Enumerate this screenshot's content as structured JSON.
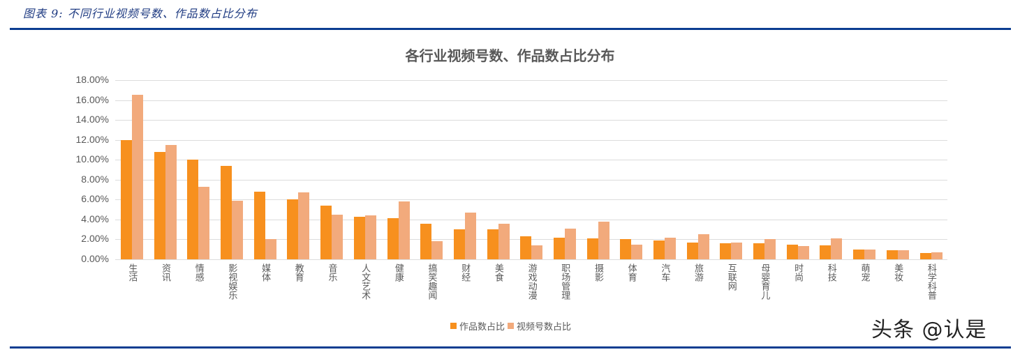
{
  "caption": "图表 9:  不同行业视频号数、作品数占比分布",
  "watermark": "头条 @认是",
  "chart_data": {
    "type": "bar",
    "title": "各行业视频号数、作品数占比分布",
    "xlabel": "",
    "ylabel": "",
    "ylim": [
      0,
      18
    ],
    "yticks": [
      "0.00%",
      "2.00%",
      "4.00%",
      "6.00%",
      "8.00%",
      "10.00%",
      "12.00%",
      "14.00%",
      "16.00%",
      "18.00%"
    ],
    "grid": true,
    "legend_position": "bottom",
    "categories": [
      "生活",
      "资讯",
      "情感",
      "影视娱乐",
      "媒体",
      "教育",
      "音乐",
      "人文艺术",
      "健康",
      "搞笑趣闻",
      "财经",
      "美食",
      "游戏动漫",
      "职场管理",
      "摄影",
      "体育",
      "汽车",
      "旅游",
      "互联网",
      "母婴育儿",
      "时尚",
      "科技",
      "萌宠",
      "美妆",
      "科学科普"
    ],
    "series": [
      {
        "name": "作品数占比",
        "color": "#f7901e",
        "values": [
          12.0,
          10.8,
          10.0,
          9.4,
          6.8,
          6.0,
          5.4,
          4.3,
          4.1,
          3.6,
          3.0,
          3.0,
          2.3,
          2.2,
          2.1,
          2.0,
          1.9,
          1.7,
          1.6,
          1.6,
          1.5,
          1.4,
          1.0,
          0.9,
          0.6
        ]
      },
      {
        "name": "视频号数占比",
        "color": "#f2aa7c",
        "values": [
          16.5,
          11.5,
          7.3,
          5.9,
          2.0,
          6.7,
          4.5,
          4.4,
          5.8,
          1.8,
          4.7,
          3.6,
          1.4,
          3.1,
          3.8,
          1.5,
          2.2,
          2.5,
          1.7,
          2.0,
          1.3,
          2.1,
          1.0,
          0.9,
          0.7
        ]
      }
    ]
  }
}
